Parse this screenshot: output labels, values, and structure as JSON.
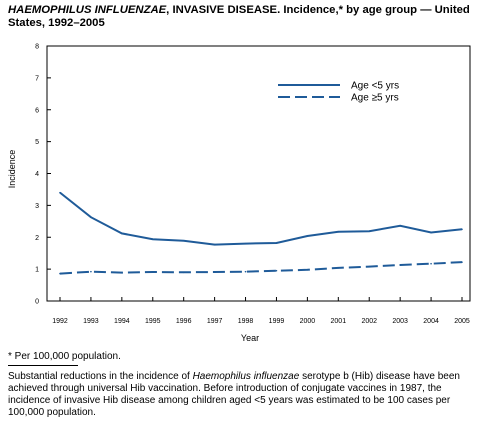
{
  "header": {
    "title_italic": "HAEMOPHILUS INFLUENZAE",
    "title_rest": ", INVASIVE DISEASE. Incidence,* by age group — United States, 1992–2005"
  },
  "footnote": "* Per 100,000 population.",
  "note": {
    "part1": "Substantial reductions in the incidence of ",
    "italic": "Haemophilus influenzae",
    "part2": " serotype b (Hib) disease have been achieved through universal Hib vaccination. Before introduction of conjugate vaccines in 1987, the incidence of invasive Hib disease among children aged <5 years was estimated to be 100 cases per 100,000 population."
  },
  "chart_data": {
    "type": "line",
    "title": "HAEMOPHILUS INFLUENZAE, INVASIVE DISEASE. Incidence,* by age group — United States, 1992–2005",
    "xlabel": "Year",
    "ylabel": "Incidence",
    "ylim": [
      0,
      8
    ],
    "yticks": [
      "0",
      "1",
      "2",
      "3",
      "4",
      "5",
      "6",
      "7",
      "8"
    ],
    "x": [
      "1992",
      "1993",
      "1994",
      "1995",
      "1996",
      "1997",
      "1998",
      "1999",
      "2000",
      "2001",
      "2002",
      "2003",
      "2004",
      "2005"
    ],
    "grid": false,
    "legend_position": "top-right",
    "series": [
      {
        "name": "Age <5 yrs",
        "style": "solid",
        "color": "#1f5b99",
        "values": [
          3.4,
          2.63,
          2.12,
          1.94,
          1.89,
          1.77,
          1.8,
          1.82,
          2.04,
          2.17,
          2.19,
          2.36,
          2.15,
          2.25
        ]
      },
      {
        "name": "Age ≥5 yrs",
        "style": "dashed",
        "color": "#1f5b99",
        "values": [
          0.86,
          0.92,
          0.89,
          0.91,
          0.9,
          0.91,
          0.92,
          0.95,
          0.98,
          1.04,
          1.08,
          1.13,
          1.17,
          1.22
        ]
      }
    ]
  }
}
